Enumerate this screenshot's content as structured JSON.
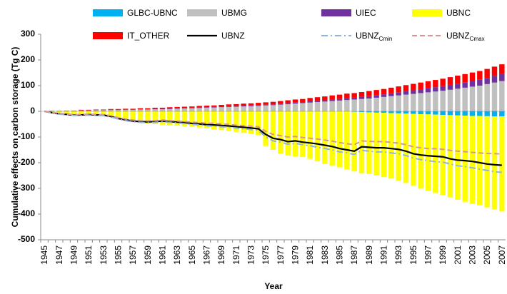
{
  "chart_data": {
    "type": "bar",
    "y_label": "Cumulative effects on carbon storage (Tg C)",
    "x_label": "Year",
    "categories": [
      "1945",
      null,
      "1947",
      null,
      "1949",
      null,
      "1951",
      null,
      "1953",
      null,
      "1955",
      null,
      "1957",
      null,
      "1959",
      null,
      "1961",
      null,
      "1963",
      null,
      "1965",
      null,
      "1967",
      null,
      "1969",
      null,
      "1971",
      null,
      "1973",
      null,
      "1975",
      null,
      "1977",
      null,
      "1979",
      null,
      "1981",
      null,
      "1983",
      null,
      "1985",
      null,
      "1987",
      null,
      "1989",
      null,
      "1991",
      null,
      "1993",
      null,
      "1995",
      null,
      "1997",
      null,
      "1999",
      null,
      "2001",
      null,
      "2003",
      null,
      "2005",
      null,
      "2007"
    ],
    "ylim": [
      -500,
      300
    ],
    "yticks": [
      -500,
      -400,
      -300,
      -200,
      -100,
      0,
      100,
      200,
      300
    ],
    "stacked": true,
    "grid": false,
    "series": [
      {
        "name": "GLBC-UBNC",
        "type": "bar",
        "color": "#00b0f0",
        "values": [
          0,
          0,
          0,
          0,
          0,
          0,
          0,
          0,
          0,
          0,
          0,
          0,
          0,
          0,
          0,
          0,
          0,
          0,
          0,
          0,
          0,
          0,
          0,
          0,
          0,
          0,
          0,
          0,
          0,
          0,
          0,
          0,
          0,
          0,
          0,
          0,
          0,
          0,
          0,
          0,
          0,
          0,
          -2,
          -3,
          -4,
          -5,
          -6,
          -7,
          -8,
          -9,
          -10,
          -11,
          -12,
          -13,
          -14,
          -15,
          -16,
          -17,
          -18,
          -18,
          -19,
          -20,
          -20
        ]
      },
      {
        "name": "UBMG",
        "type": "bar",
        "color": "#c0c0c0",
        "values": [
          0,
          1,
          1,
          2,
          2,
          3,
          3,
          4,
          4,
          5,
          5,
          6,
          6,
          7,
          7,
          8,
          8,
          9,
          10,
          11,
          12,
          13,
          14,
          15,
          16,
          17,
          18,
          19,
          20,
          21,
          23,
          24,
          26,
          28,
          30,
          32,
          34,
          36,
          38,
          40,
          42,
          44,
          46,
          48,
          50,
          53,
          56,
          59,
          62,
          65,
          68,
          71,
          74,
          77,
          80,
          84,
          88,
          92,
          96,
          100,
          106,
          112,
          118
        ]
      },
      {
        "name": "UIEC",
        "type": "bar",
        "color": "#7030a0",
        "values": [
          0,
          0,
          0,
          0,
          0,
          1,
          1,
          1,
          1,
          1,
          1,
          1,
          1,
          1,
          1,
          2,
          2,
          2,
          2,
          2,
          2,
          2,
          2,
          2,
          2,
          3,
          3,
          3,
          3,
          3,
          3,
          3,
          4,
          4,
          4,
          4,
          5,
          5,
          5,
          6,
          6,
          7,
          7,
          8,
          9,
          10,
          10,
          11,
          12,
          13,
          14,
          15,
          16,
          17,
          18,
          19,
          20,
          21,
          22,
          23,
          24,
          26,
          28
        ]
      },
      {
        "name": "UBNC",
        "type": "bar",
        "color": "#ffff00",
        "values": [
          0,
          -5,
          -8,
          -10,
          -12,
          -14,
          -15,
          -16,
          -18,
          -20,
          -30,
          -35,
          -40,
          -45,
          -48,
          -50,
          -52,
          -54,
          -56,
          -58,
          -60,
          -63,
          -66,
          -70,
          -73,
          -76,
          -80,
          -84,
          -88,
          -92,
          -135,
          -150,
          -165,
          -172,
          -175,
          -178,
          -185,
          -195,
          -205,
          -212,
          -218,
          -225,
          -232,
          -238,
          -240,
          -245,
          -250,
          -255,
          -262,
          -270,
          -280,
          -290,
          -298,
          -305,
          -312,
          -320,
          -328,
          -335,
          -342,
          -348,
          -355,
          -362,
          -370
        ]
      },
      {
        "name": "IT_OTHER",
        "type": "bar",
        "color": "#ff0000",
        "values": [
          0,
          1,
          1,
          1,
          1,
          2,
          2,
          2,
          2,
          3,
          3,
          3,
          3,
          4,
          4,
          4,
          4,
          5,
          5,
          5,
          5,
          6,
          6,
          6,
          7,
          7,
          7,
          8,
          8,
          9,
          9,
          10,
          10,
          11,
          12,
          12,
          13,
          14,
          15,
          16,
          17,
          18,
          18,
          19,
          20,
          20,
          21,
          22,
          23,
          24,
          25,
          26,
          27,
          28,
          29,
          30,
          31,
          32,
          33,
          34,
          35,
          36,
          37
        ]
      },
      {
        "name": "UBNZ",
        "type": "line",
        "color": "#000000",
        "dash": "solid",
        "values": [
          0,
          -5,
          -10,
          -12,
          -15,
          -14,
          -13,
          -14,
          -15,
          -20,
          -28,
          -33,
          -38,
          -40,
          -41,
          -40,
          -38,
          -40,
          -42,
          -44,
          -47,
          -49,
          -52,
          -53,
          -55,
          -57,
          -60,
          -62,
          -65,
          -68,
          -90,
          -105,
          -110,
          -118,
          -115,
          -120,
          -123,
          -127,
          -132,
          -137,
          -145,
          -150,
          -155,
          -138,
          -140,
          -142,
          -142,
          -145,
          -148,
          -155,
          -165,
          -170,
          -173,
          -175,
          -177,
          -185,
          -190,
          -192,
          -195,
          -200,
          -205,
          -208,
          -210
        ]
      },
      {
        "name": "UBNZ",
        "subscript": "Cmin",
        "type": "line",
        "color": "#8eb4e3",
        "dash": "dashdot",
        "values": [
          0,
          -6,
          -11,
          -13,
          -16,
          -16,
          -15,
          -16,
          -17,
          -22,
          -30,
          -36,
          -41,
          -43,
          -44,
          -43,
          -41,
          -43,
          -45,
          -48,
          -51,
          -53,
          -56,
          -58,
          -60,
          -62,
          -65,
          -68,
          -71,
          -74,
          -100,
          -115,
          -120,
          -128,
          -125,
          -130,
          -134,
          -140,
          -145,
          -150,
          -158,
          -162,
          -168,
          -152,
          -155,
          -158,
          -158,
          -162,
          -165,
          -172,
          -182,
          -188,
          -192,
          -196,
          -198,
          -205,
          -212,
          -215,
          -220,
          -225,
          -230,
          -235,
          -238
        ]
      },
      {
        "name": "UBNZ",
        "subscript": "Cmax",
        "type": "line",
        "color": "#d99694",
        "dash": "dashed",
        "values": [
          0,
          -4,
          -8,
          -10,
          -13,
          -12,
          -11,
          -12,
          -13,
          -17,
          -25,
          -30,
          -34,
          -36,
          -37,
          -36,
          -34,
          -36,
          -38,
          -40,
          -42,
          -44,
          -46,
          -47,
          -49,
          -51,
          -54,
          -56,
          -58,
          -60,
          -78,
          -90,
          -95,
          -100,
          -98,
          -102,
          -105,
          -108,
          -112,
          -116,
          -122,
          -126,
          -130,
          -115,
          -117,
          -118,
          -118,
          -121,
          -124,
          -130,
          -138,
          -142,
          -145,
          -146,
          -148,
          -152,
          -155,
          -157,
          -160,
          -162,
          -164,
          -165,
          -166
        ]
      }
    ]
  }
}
